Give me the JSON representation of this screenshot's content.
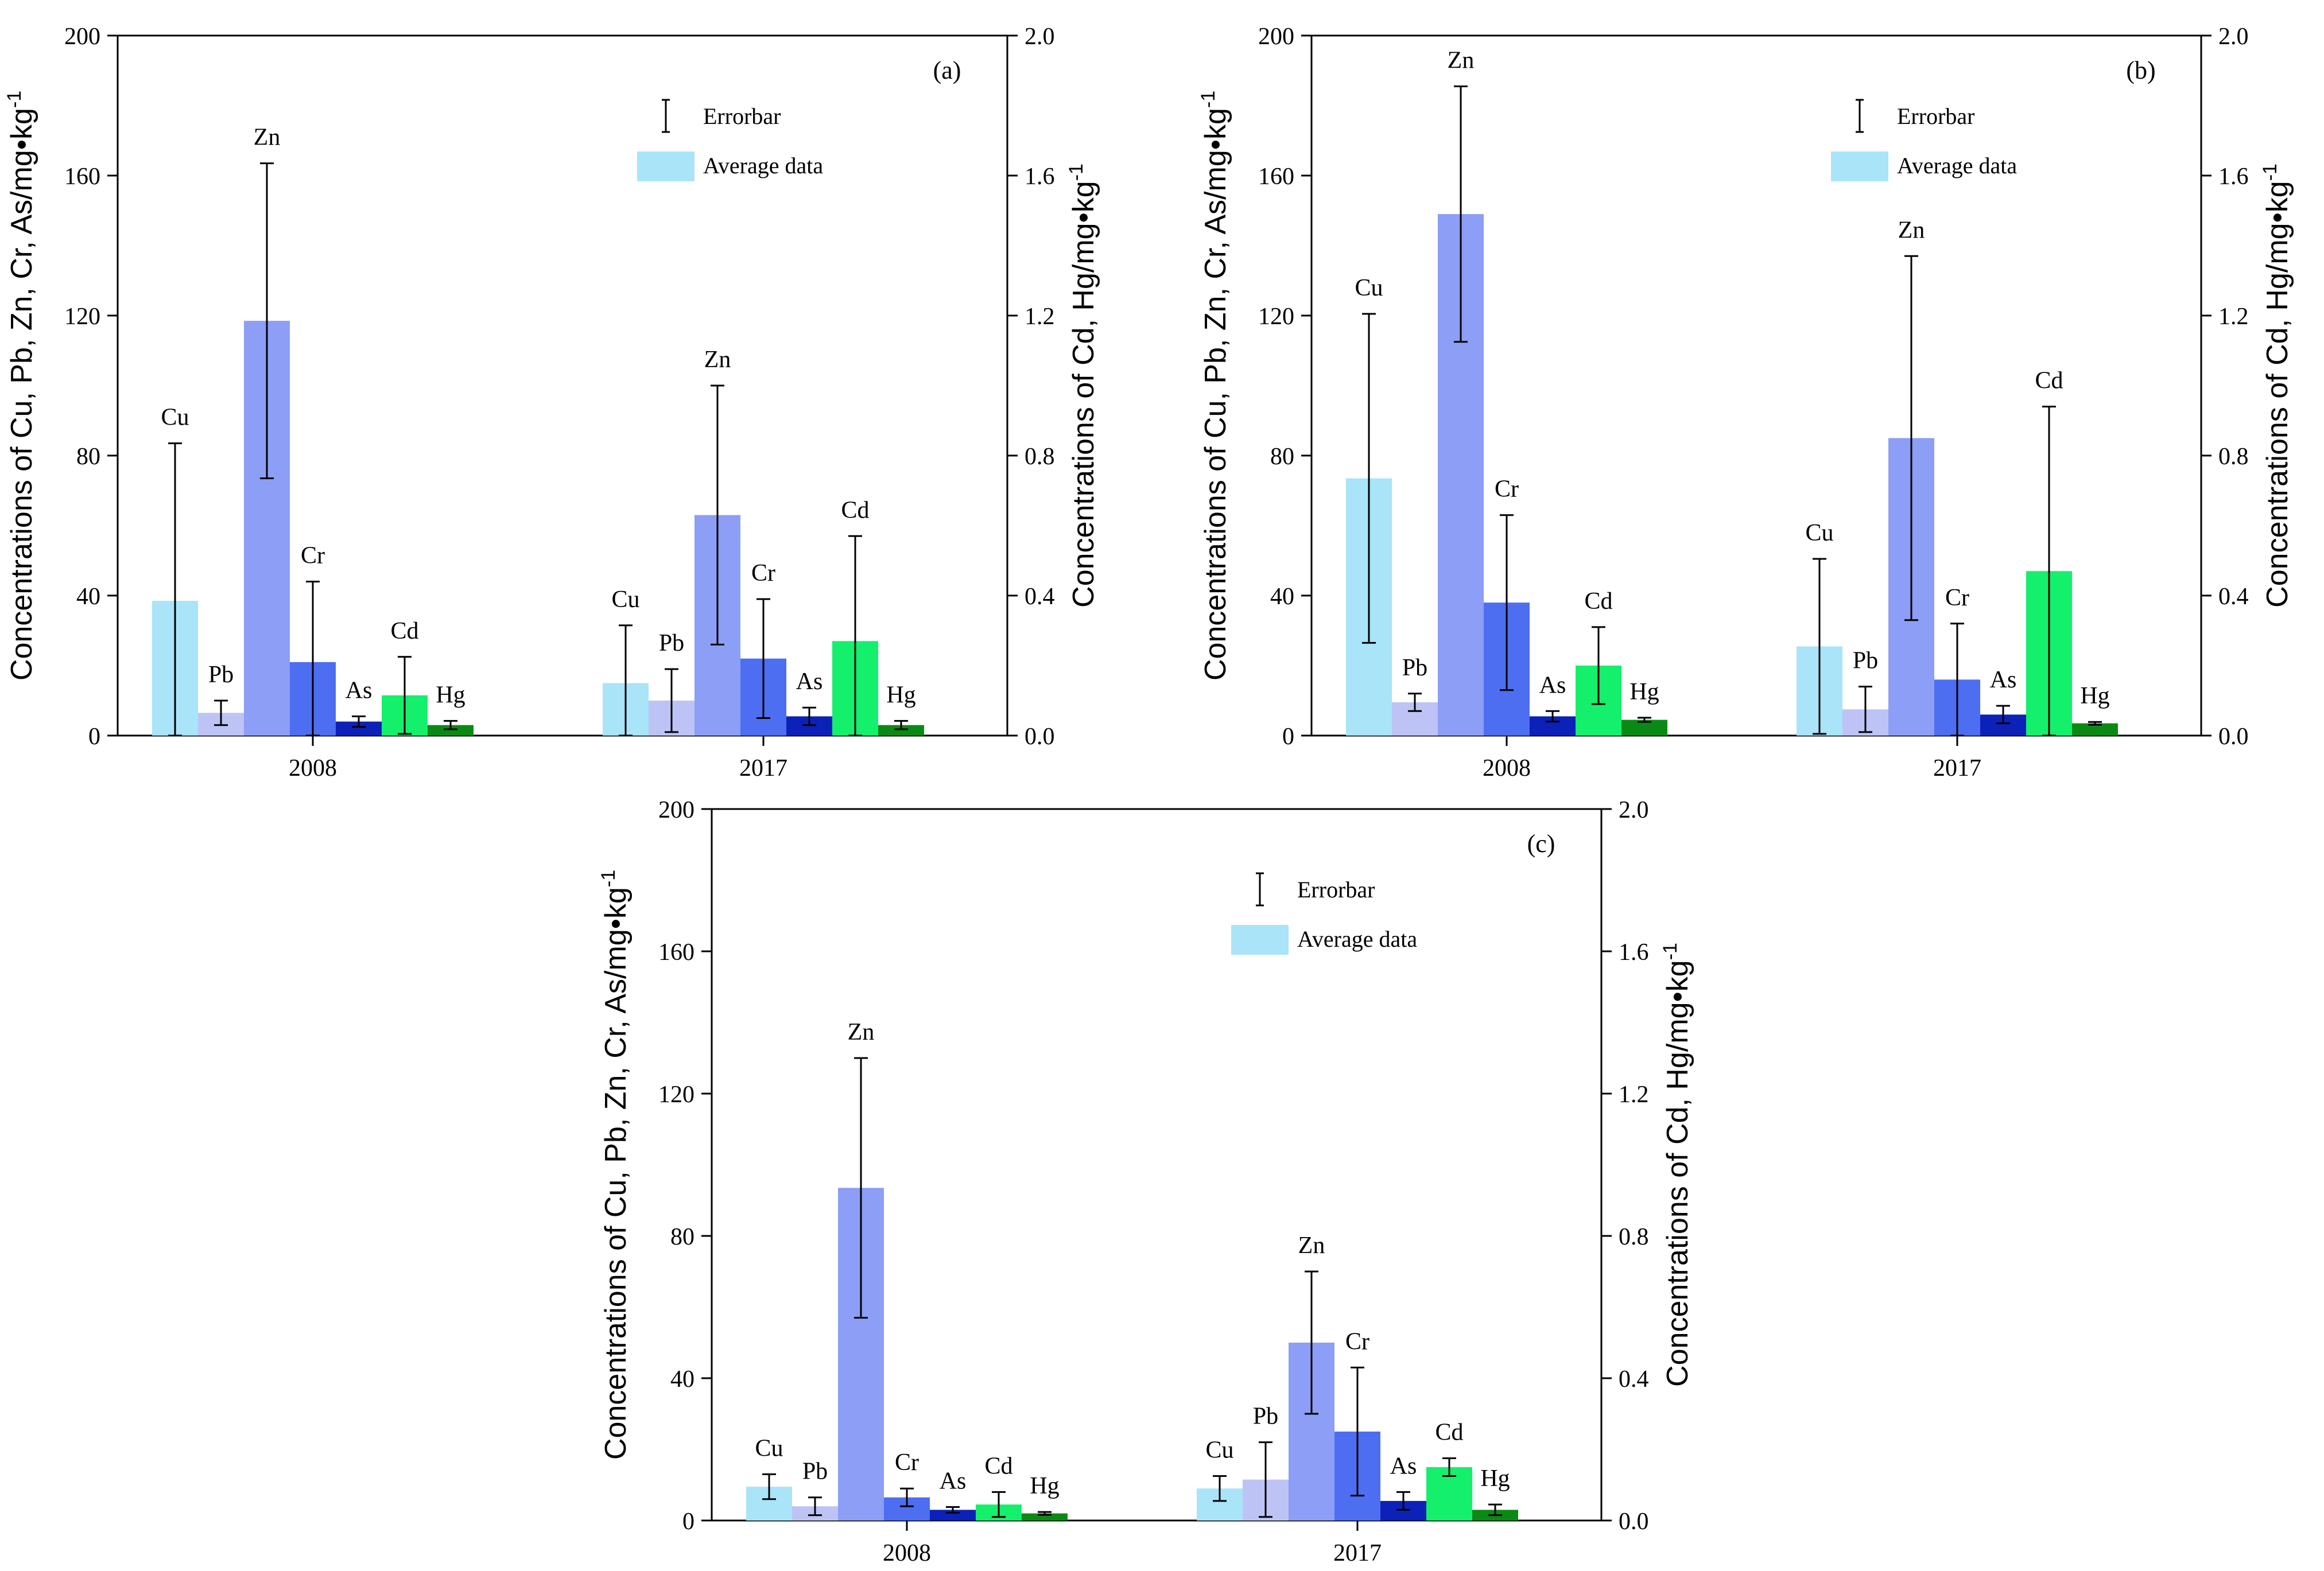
{
  "chart_data": [
    {
      "type": "bar",
      "panel_label": "(a)",
      "categories": [
        "2008",
        "2017"
      ],
      "left_axis": {
        "label": "Concentrations of Cu, Pb, Zn, Cr, As/mg•kg",
        "label_superscript": "-1",
        "ylim": [
          0,
          200
        ],
        "ticks": [
          "0",
          "40",
          "80",
          "120",
          "160",
          "200"
        ]
      },
      "right_axis": {
        "label": "Concentrations of Cd, Hg/mg•kg",
        "label_superscript": "-1",
        "ylim": [
          0,
          2.0
        ],
        "ticks": [
          "0.0",
          "0.4",
          "0.8",
          "1.2",
          "1.6",
          "2.0"
        ]
      },
      "legend": {
        "position": "top-right",
        "errorbar": "Errorbar",
        "average": "Average data"
      },
      "series": [
        {
          "name": "Cu",
          "axis": "left",
          "color": "#a9e4f9",
          "values": [
            38.5,
            15
          ],
          "errors": [
            45,
            16.5
          ]
        },
        {
          "name": "Pb",
          "axis": "left",
          "color": "#bdc4f5",
          "values": [
            6.5,
            10
          ],
          "errors": [
            3.5,
            9
          ]
        },
        {
          "name": "Zn",
          "axis": "left",
          "color": "#8c9ef5",
          "values": [
            118.5,
            63
          ],
          "errors": [
            45,
            37
          ]
        },
        {
          "name": "Cr",
          "axis": "left",
          "color": "#4d6ef0",
          "values": [
            21,
            22
          ],
          "errors": [
            23,
            17
          ]
        },
        {
          "name": "As",
          "axis": "left",
          "color": "#0b21b8",
          "values": [
            4,
            5.5
          ],
          "errors": [
            1.5,
            2.5
          ]
        },
        {
          "name": "Cd",
          "axis": "right",
          "color": "#14f06b",
          "values": [
            0.115,
            0.27
          ],
          "errors": [
            0.11,
            0.3
          ]
        },
        {
          "name": "Hg",
          "axis": "right",
          "color": "#0a8a14",
          "values": [
            0.03,
            0.03
          ],
          "errors": [
            0.012,
            0.012
          ]
        }
      ]
    },
    {
      "type": "bar",
      "panel_label": "(b)",
      "categories": [
        "2008",
        "2017"
      ],
      "left_axis": {
        "label": "Concentrations of Cu, Pb, Zn, Cr, As/mg•kg",
        "label_superscript": "-1",
        "ylim": [
          0,
          200
        ],
        "ticks": [
          "0",
          "40",
          "80",
          "120",
          "160",
          "200"
        ]
      },
      "right_axis": {
        "label": "Concentrations of Cd, Hg/mg•kg",
        "label_superscript": "-1",
        "ylim": [
          0,
          2.0
        ],
        "ticks": [
          "0.0",
          "0.4",
          "0.8",
          "1.2",
          "1.6",
          "2.0"
        ]
      },
      "legend": {
        "position": "top-right",
        "errorbar": "Errorbar",
        "average": "Average data"
      },
      "series": [
        {
          "name": "Cu",
          "axis": "left",
          "color": "#a9e4f9",
          "values": [
            73.5,
            25.5
          ],
          "errors": [
            47,
            25
          ]
        },
        {
          "name": "Pb",
          "axis": "left",
          "color": "#bdc4f5",
          "values": [
            9.5,
            7.5
          ],
          "errors": [
            2.5,
            6.5
          ]
        },
        {
          "name": "Zn",
          "axis": "left",
          "color": "#8c9ef5",
          "values": [
            149,
            85
          ],
          "errors": [
            36.5,
            52
          ]
        },
        {
          "name": "Cr",
          "axis": "left",
          "color": "#4d6ef0",
          "values": [
            38,
            16
          ],
          "errors": [
            25,
            16
          ]
        },
        {
          "name": "As",
          "axis": "left",
          "color": "#0b21b8",
          "values": [
            5.5,
            6
          ],
          "errors": [
            1.5,
            2.5
          ]
        },
        {
          "name": "Cd",
          "axis": "right",
          "color": "#14f06b",
          "values": [
            0.2,
            0.47
          ],
          "errors": [
            0.11,
            0.47
          ]
        },
        {
          "name": "Hg",
          "axis": "right",
          "color": "#0a8a14",
          "values": [
            0.045,
            0.035
          ],
          "errors": [
            0.006,
            0.004
          ]
        }
      ]
    },
    {
      "type": "bar",
      "panel_label": "(c)",
      "categories": [
        "2008",
        "2017"
      ],
      "left_axis": {
        "label": "Concentrations of Cu, Pb, Zn, Cr, As/mg•kg",
        "label_superscript": "-1",
        "ylim": [
          0,
          200
        ],
        "ticks": [
          "0",
          "40",
          "80",
          "120",
          "160",
          "200"
        ]
      },
      "right_axis": {
        "label": "Concentrations of Cd, Hg/mg•kg",
        "label_superscript": "-1",
        "ylim": [
          0,
          2.0
        ],
        "ticks": [
          "0.0",
          "0.4",
          "0.8",
          "1.2",
          "1.6",
          "2.0"
        ]
      },
      "legend": {
        "position": "top-right",
        "errorbar": "Errorbar",
        "average": "Average data"
      },
      "series": [
        {
          "name": "Cu",
          "axis": "left",
          "color": "#a9e4f9",
          "values": [
            9.5,
            9
          ],
          "errors": [
            3.5,
            3.5
          ]
        },
        {
          "name": "Pb",
          "axis": "left",
          "color": "#bdc4f5",
          "values": [
            4,
            11.5
          ],
          "errors": [
            2.5,
            10.5
          ]
        },
        {
          "name": "Zn",
          "axis": "left",
          "color": "#8c9ef5",
          "values": [
            93.5,
            50
          ],
          "errors": [
            36.5,
            20
          ]
        },
        {
          "name": "Cr",
          "axis": "left",
          "color": "#4d6ef0",
          "values": [
            6.5,
            25
          ],
          "errors": [
            2.5,
            18
          ]
        },
        {
          "name": "As",
          "axis": "left",
          "color": "#0b21b8",
          "values": [
            3,
            5.5
          ],
          "errors": [
            0.8,
            2.5
          ]
        },
        {
          "name": "Cd",
          "axis": "right",
          "color": "#14f06b",
          "values": [
            0.045,
            0.15
          ],
          "errors": [
            0.035,
            0.025
          ]
        },
        {
          "name": "Hg",
          "axis": "right",
          "color": "#0a8a14",
          "values": [
            0.02,
            0.03
          ],
          "errors": [
            0.004,
            0.015
          ]
        }
      ]
    }
  ]
}
